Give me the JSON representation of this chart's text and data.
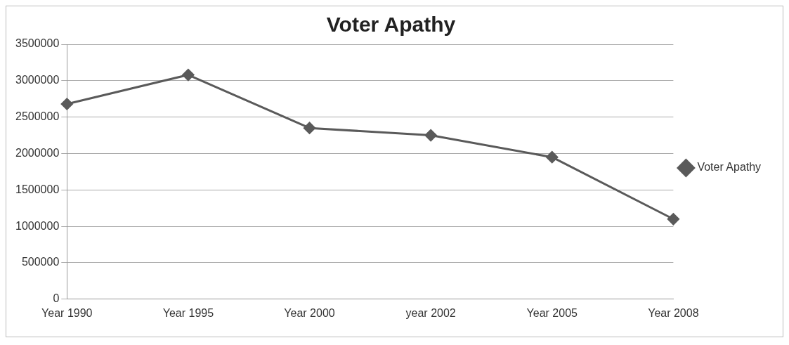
{
  "chart_data": {
    "type": "line",
    "title": "Voter Apathy",
    "categories": [
      "Year 1990",
      "Year 1995",
      "Year 2000",
      "year 2002",
      "Year 2005",
      "Year 2008"
    ],
    "series": [
      {
        "name": "Voter Apathy",
        "color": "#5a5a5a",
        "values": [
          2680000,
          3080000,
          2350000,
          2250000,
          1950000,
          1100000
        ]
      }
    ],
    "ylim": [
      0,
      3500000
    ],
    "yticks": [
      0,
      500000,
      1000000,
      1500000,
      2000000,
      2500000,
      3000000,
      3500000
    ],
    "grid": "y",
    "legend": "right",
    "marker": "diamond",
    "line_style": "solid"
  }
}
